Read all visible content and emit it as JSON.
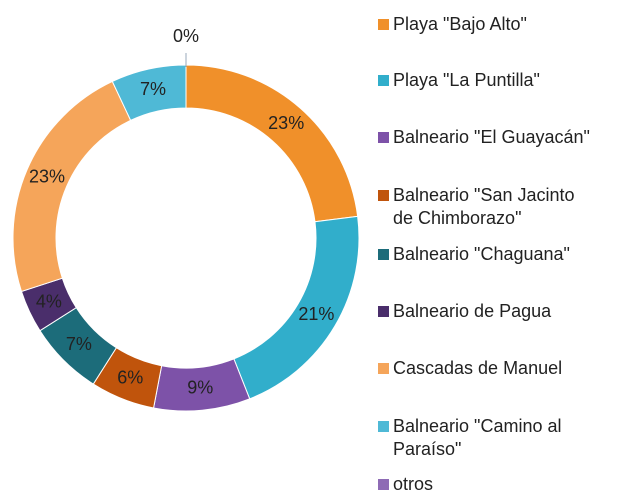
{
  "chart_data": {
    "type": "donut",
    "categories": [
      "Playa \"Bajo Alto\"",
      "Playa \"La Puntilla\"",
      "Balneario \"El Guayacán\"",
      "Balneario \"San Jacinto\nde Chimborazo\"",
      "Balneario \"Chaguana\"",
      "Balneario de Pagua",
      "Cascadas de Manuel",
      "Balneario \"Camino al\nParaíso\"",
      "otros"
    ],
    "values": [
      23,
      21,
      9,
      6,
      7,
      4,
      23,
      7,
      0
    ],
    "value_labels": [
      "23%",
      "21%",
      "9%",
      "6%",
      "7%",
      "4%",
      "23%",
      "7%",
      "0%"
    ],
    "colors": [
      "#f0902a",
      "#31aecb",
      "#7d52a8",
      "#c0540c",
      "#1c6c7a",
      "#4a2e6b",
      "#f5a55a",
      "#4fb9d6",
      "#8e6bb5"
    ],
    "legend": "right"
  }
}
